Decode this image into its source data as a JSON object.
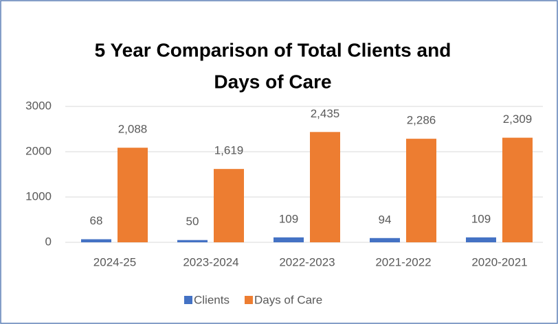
{
  "chart_data": {
    "type": "bar",
    "title": [
      "5 Year Comparison of Total Clients and",
      "Days of Care"
    ],
    "categories": [
      "2024-25",
      "2023-2024",
      "2022-2023",
      "2021-2022",
      "2020-2021"
    ],
    "series": [
      {
        "name": "Clients",
        "color": "#4472c4",
        "values": [
          68,
          50,
          109,
          94,
          109
        ]
      },
      {
        "name": "Days of Care",
        "color": "#ed7d31",
        "values": [
          2088,
          1619,
          2435,
          2286,
          2309
        ],
        "value_labels": [
          "2,088",
          "1,619",
          "2,435",
          "2,286",
          "2,309"
        ]
      }
    ],
    "ylim": [
      0,
      3000
    ],
    "yticks": [
      0,
      1000,
      2000,
      3000
    ],
    "grid": true,
    "legend": "bottom"
  }
}
